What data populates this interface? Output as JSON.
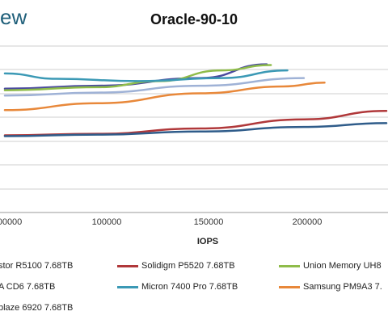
{
  "header": {
    "logo_text": "ew"
  },
  "chart_data": {
    "type": "line",
    "title": "Oracle-90-10",
    "xlabel": "IOPS",
    "ylabel": "",
    "x_ticks": [
      "00000",
      "100000",
      "150000",
      "200000"
    ],
    "grid": true,
    "legend_position": "bottom",
    "series": [
      {
        "name": "stor R5100 7.68TB",
        "color": "#4a4a9e",
        "points": [
          [
            55000,
            1.62
          ],
          [
            100000,
            1.66
          ],
          [
            150000,
            1.76
          ],
          [
            182000,
            1.94
          ]
        ]
      },
      {
        "name": "Solidigm P5520 7.68TB",
        "color": "#b0383a",
        "points": [
          [
            55000,
            1.01
          ],
          [
            100000,
            1.03
          ],
          [
            150000,
            1.1
          ],
          [
            200000,
            1.22
          ],
          [
            240000,
            1.33
          ]
        ]
      },
      {
        "name": "Union Memory UH8",
        "color": "#8fbc4a",
        "points": [
          [
            55000,
            1.6
          ],
          [
            100000,
            1.64
          ],
          [
            130000,
            1.72
          ],
          [
            160000,
            1.86
          ],
          [
            184000,
            1.93
          ]
        ]
      },
      {
        "name": "A CD6 7.68TB",
        "color": "#2f5c8a",
        "points": [
          [
            55000,
            1.0
          ],
          [
            100000,
            1.02
          ],
          [
            150000,
            1.06
          ],
          [
            200000,
            1.12
          ],
          [
            240000,
            1.17
          ]
        ]
      },
      {
        "name": "Micron 7400 Pro 7.68TB",
        "color": "#3b99b5",
        "points": [
          [
            55000,
            1.82
          ],
          [
            80000,
            1.75
          ],
          [
            120000,
            1.72
          ],
          [
            160000,
            1.76
          ],
          [
            192000,
            1.86
          ]
        ]
      },
      {
        "name": "Samsung PM9A3 7.",
        "color": "#e8883a",
        "points": [
          [
            55000,
            1.34
          ],
          [
            100000,
            1.43
          ],
          [
            150000,
            1.56
          ],
          [
            190000,
            1.65
          ],
          [
            210000,
            1.7
          ]
        ]
      },
      {
        "name": "blaze 6920 7.68TB",
        "color": "#9fb2d6",
        "points": [
          [
            55000,
            1.53
          ],
          [
            100000,
            1.57
          ],
          [
            150000,
            1.66
          ],
          [
            200000,
            1.76
          ]
        ]
      }
    ]
  }
}
